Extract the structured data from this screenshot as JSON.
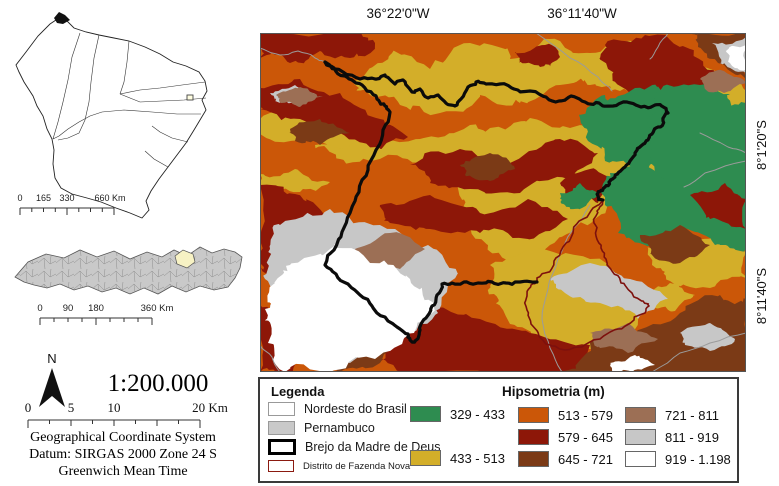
{
  "figure": {
    "lon_labels": [
      "36°22'0\"W",
      "36°11'40\"W"
    ],
    "lat_labels": [
      "8°1'20\"S",
      "8°11'40\"S"
    ]
  },
  "left_panel": {
    "north_label": "N",
    "scale_text": "1:200.000",
    "inset_ne_scalebar": {
      "labels": [
        "0",
        "165",
        "330",
        "660 Km"
      ]
    },
    "inset_pe_scalebar": {
      "labels": [
        "0",
        "90",
        "180",
        "360 Km"
      ]
    },
    "main_scalebar": {
      "labels": [
        "0",
        "5",
        "10",
        "20 Km"
      ]
    },
    "crs_lines": [
      "Geographical Coordinate System",
      "Datum: SIRGAS 2000 Zone 24 S",
      "Greenwich Mean Time"
    ],
    "inset_ne_fill": "#ffffff",
    "inset_pe_fill": "#c9c9c9",
    "inset_pe_highlight": "#f7f2c4"
  },
  "map": {
    "boundary_color": "#0b0b0b",
    "district_color": "#7d100d",
    "road_color": "#9b9b9b",
    "border_color": "#555555"
  },
  "legend": {
    "title": "Legenda",
    "boundary_items": [
      {
        "label": "Nordeste do Brasil",
        "swatch_fill": "#ffffff",
        "swatch_border": "#999999"
      },
      {
        "label": "Pernambuco",
        "swatch_fill": "#c9c9c9",
        "swatch_border": "#999999"
      },
      {
        "label": "Brejo da Madre de Deus",
        "swatch_fill": "#ffffff",
        "swatch_border": "#000000"
      },
      {
        "label": "Distrito de Fazenda Nova",
        "swatch_fill": "#ffffff",
        "swatch_border": "#8b1a10"
      }
    ],
    "hipsometria": {
      "title": "Hipsometria (m)",
      "classes": [
        {
          "range": "329 - 433",
          "color": "#2e8c50"
        },
        {
          "range": "433 - 513",
          "color": "#d3ae29"
        },
        {
          "range": "513 - 579",
          "color": "#cb5708"
        },
        {
          "range": "579 - 645",
          "color": "#8d1708"
        },
        {
          "range": "645 - 721",
          "color": "#7b3a16"
        },
        {
          "range": "721 - 811",
          "color": "#9c6f55"
        },
        {
          "range": "811 - 919",
          "color": "#c7c7c7"
        },
        {
          "range": "919 - 1.198",
          "color": "#ffffff"
        }
      ]
    }
  }
}
